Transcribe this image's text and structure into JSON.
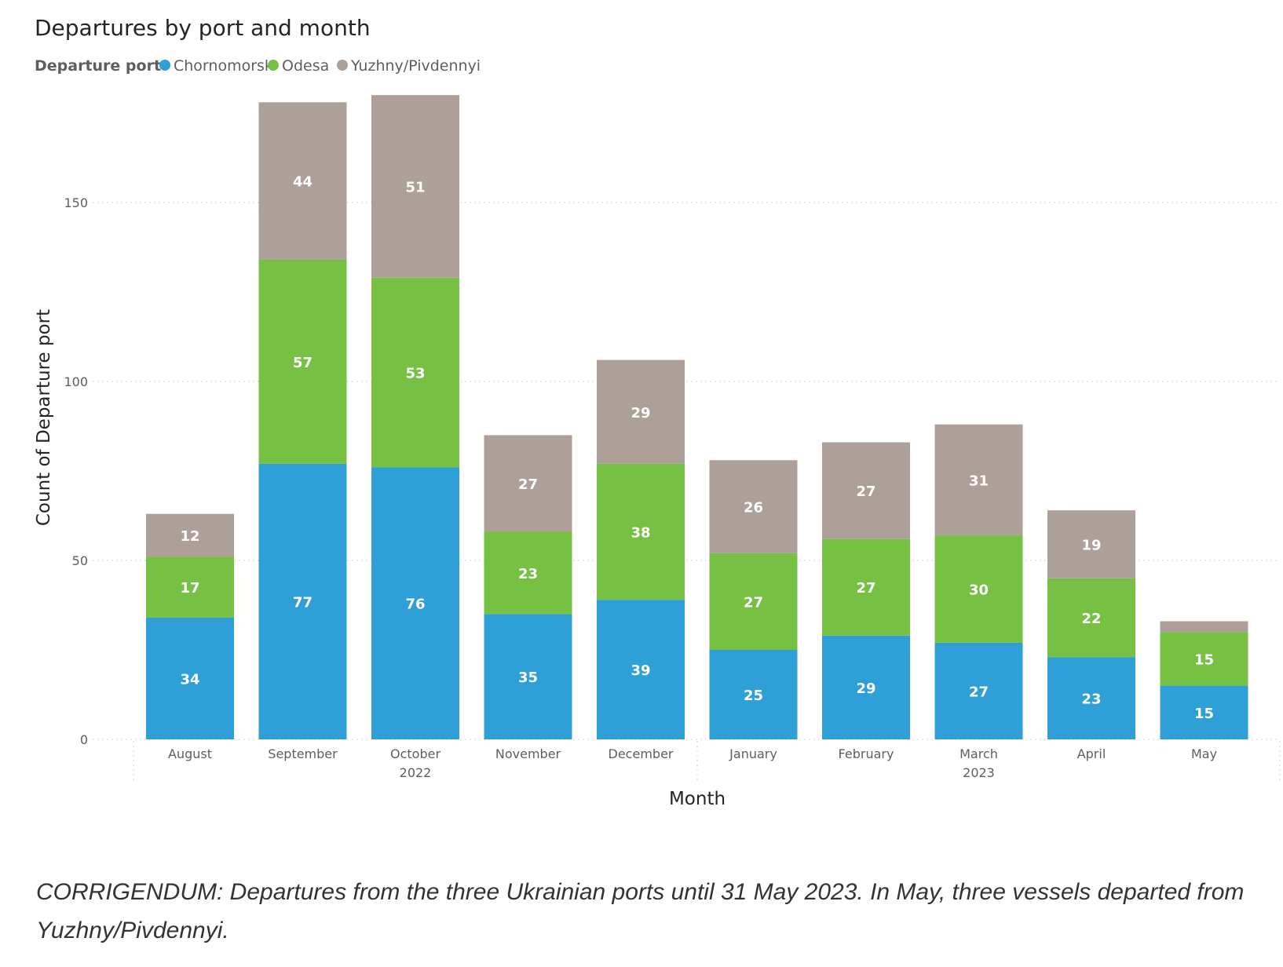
{
  "chart_data": {
    "type": "bar",
    "stacked": true,
    "title": "Departures by port and month",
    "legend_title": "Departure port",
    "legend_position": "top-left",
    "xlabel": "Month",
    "ylabel": "Count of Departure port",
    "ylim": [
      0,
      180
    ],
    "yticks": [
      0,
      50,
      100,
      150
    ],
    "grid": true,
    "categories": [
      "August",
      "September",
      "October",
      "November",
      "December",
      "January",
      "February",
      "March",
      "April",
      "May"
    ],
    "year_labels": [
      {
        "category": "October",
        "label": "2022"
      },
      {
        "category": "March",
        "label": "2023"
      }
    ],
    "series": [
      {
        "name": "Chornomorsk",
        "color": "#2f9fd8",
        "values": [
          34,
          77,
          76,
          35,
          39,
          25,
          29,
          27,
          23,
          15
        ]
      },
      {
        "name": "Odesa",
        "color": "#76c043",
        "values": [
          17,
          57,
          53,
          23,
          38,
          27,
          27,
          30,
          22,
          15
        ]
      },
      {
        "name": "Yuzhny/Pivdennyi",
        "color": "#aca099",
        "values": [
          12,
          44,
          51,
          27,
          29,
          26,
          27,
          31,
          19,
          3
        ]
      }
    ],
    "data_labels": [
      [
        "34",
        "77",
        "76",
        "35",
        "39",
        "25",
        "29",
        "27",
        "23",
        "15"
      ],
      [
        "17",
        "57",
        "53",
        "23",
        "38",
        "27",
        "27",
        "30",
        "22",
        "15"
      ],
      [
        "12",
        "44",
        "51",
        "27",
        "29",
        "26",
        "27",
        "31",
        "19",
        ""
      ]
    ]
  },
  "caption": "CORRIGENDUM: Departures from the three Ukrainian ports until 31 May 2023. In May, three vessels departed from Yuzhny/Pivdennyi."
}
